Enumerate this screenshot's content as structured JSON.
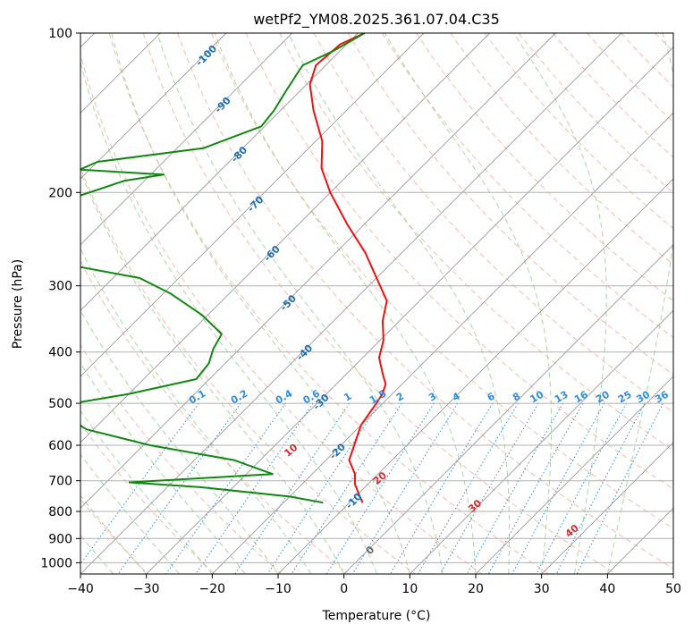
{
  "chart_data": {
    "type": "line",
    "title": "wetPf2_YM08.2025.361.07.04.C35",
    "xlabel": "Temperature (°C)",
    "ylabel": "Pressure (hPa)",
    "xlim": [
      -40,
      50
    ],
    "ylim": [
      1050,
      100
    ],
    "y_scale": "log",
    "grid": true,
    "skew": true,
    "x_ticks": [
      -40,
      -30,
      -20,
      -10,
      0,
      10,
      20,
      30,
      40,
      50
    ],
    "y_ticks": [
      100,
      200,
      300,
      400,
      500,
      600,
      700,
      800,
      900,
      1000
    ],
    "colors": {
      "temperature": "#ee1111",
      "dewpoint": "#118811",
      "isotherm": "#9a9a9a",
      "dry_adiabat": "#f4a48c",
      "moist_adiabat": "#8fd08f",
      "mixing_ratio": "#2e8ee0",
      "isotherm_label": "#1f6fb0",
      "dry_adiabat_label": "#d62b2b",
      "zero_label": "#666666"
    },
    "series": [
      {
        "key": "temperature",
        "pressure": [
          100,
          105,
          115,
          125,
          140,
          160,
          180,
          200,
          230,
          260,
          290,
          320,
          350,
          380,
          410,
          440,
          460,
          480,
          500,
          550,
          600,
          640,
          680,
          710,
          740,
          770
        ],
        "values": [
          -79,
          -81,
          -81.5,
          -79.5,
          -75,
          -69,
          -65,
          -60,
          -52.5,
          -45.5,
          -40,
          -35,
          -32.5,
          -29.5,
          -27.5,
          -24.5,
          -22.5,
          -21.5,
          -21,
          -20,
          -18,
          -16.5,
          -13.5,
          -12,
          -10,
          -8
        ]
      },
      {
        "key": "dewpoint",
        "pressure": [
          100,
          108,
          115,
          120,
          130,
          140,
          150,
          165,
          175,
          181,
          185,
          190,
          210,
          230,
          250,
          262,
          270,
          290,
          310,
          340,
          370,
          395,
          420,
          450,
          480,
          500,
          520,
          560,
          600,
          640,
          680,
          705,
          720,
          750,
          770
        ],
        "values": [
          -79,
          -81,
          -83.5,
          -83,
          -82,
          -81,
          -80.5,
          -86,
          -100,
          -101.5,
          -88,
          -93,
          -100,
          -104.5,
          -104,
          -103.5,
          -92,
          -76,
          -69,
          -61,
          -55,
          -54,
          -52.5,
          -52,
          -60,
          -67,
          -68,
          -61,
          -49,
          -34,
          -26,
          -46.5,
          -35,
          -20,
          -14
        ]
      }
    ],
    "isotherm_labels": [
      "-100",
      "-90",
      "-80",
      "-70",
      "-60",
      "-50",
      "-40",
      "-30",
      "-20",
      "-10",
      "0"
    ],
    "dry_adiabat_labels": [
      "10",
      "20",
      "30",
      "40"
    ],
    "mixing_ratio_labels": [
      "0.1",
      "0.2",
      "0.4",
      "0.6",
      "1",
      "1.5",
      "2",
      "3",
      "4",
      "6",
      "8",
      "10",
      "13",
      "16",
      "20",
      "25",
      "30",
      "36"
    ]
  }
}
